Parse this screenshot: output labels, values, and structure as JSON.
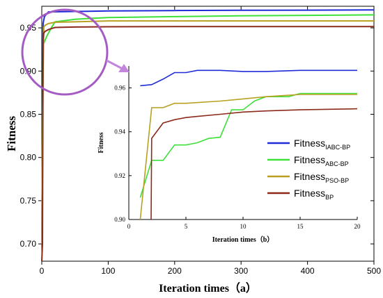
{
  "chart_data": [
    {
      "type": "line",
      "panel": "main",
      "xlabel": "Iteration times（a）",
      "ylabel": "Fitness",
      "xlim": [
        0,
        500
      ],
      "ylim": [
        0.68,
        0.975
      ],
      "xticks": [
        0,
        100,
        200,
        300,
        400,
        500
      ],
      "yticks": [
        0.7,
        0.75,
        0.8,
        0.85,
        0.9,
        0.95
      ],
      "series": [
        {
          "color": "#1f2bd8",
          "x": [
            0,
            2,
            4,
            10,
            50,
            100,
            200,
            300,
            400,
            500
          ],
          "y": [
            0.7,
            0.955,
            0.963,
            0.9685,
            0.969,
            0.9695,
            0.97,
            0.9703,
            0.9705,
            0.9708
          ]
        },
        {
          "color": "#3ee03a",
          "x": [
            0,
            2,
            4,
            8,
            15,
            20,
            50,
            100,
            200,
            300,
            400,
            500
          ],
          "y": [
            0.7,
            0.93,
            0.934,
            0.941,
            0.951,
            0.957,
            0.96,
            0.962,
            0.963,
            0.964,
            0.9645,
            0.965
          ]
        },
        {
          "color": "#b8a020",
          "x": [
            0,
            2,
            3,
            5,
            10,
            20,
            50,
            100,
            200,
            300,
            400,
            500
          ],
          "y": [
            0.7,
            0.9,
            0.951,
            0.953,
            0.955,
            0.9565,
            0.957,
            0.958,
            0.958,
            0.958,
            0.958,
            0.958
          ]
        },
        {
          "color": "#8b2a1a",
          "x": [
            0,
            1,
            2,
            3,
            5,
            10,
            20,
            50,
            100,
            200,
            300,
            400,
            500
          ],
          "y": [
            0.68,
            0.7,
            0.937,
            0.944,
            0.946,
            0.948,
            0.9505,
            0.951,
            0.9513,
            0.9515,
            0.9515,
            0.9515,
            0.9515
          ]
        }
      ]
    },
    {
      "type": "line",
      "panel": "inset",
      "xlabel": "Iteration times（b）",
      "ylabel": "Fitness",
      "xlim": [
        0,
        20
      ],
      "ylim": [
        0.9,
        0.97
      ],
      "xticks": [
        0,
        5,
        10,
        15,
        20
      ],
      "yticks": [
        0.9,
        0.92,
        0.94,
        0.96
      ],
      "grid": false,
      "legend_position": "right",
      "series": [
        {
          "name": "Fitness",
          "name_sub": "IABC-BP",
          "color": "#1f2bd8",
          "x": [
            1,
            2,
            3,
            4,
            5,
            6,
            8,
            10,
            12,
            15,
            20
          ],
          "y": [
            0.961,
            0.9615,
            0.964,
            0.967,
            0.967,
            0.968,
            0.968,
            0.9675,
            0.9675,
            0.968,
            0.968
          ]
        },
        {
          "name": "Fitness",
          "name_sub": "ABC-BP",
          "color": "#3ee03a",
          "x": [
            1,
            2,
            3,
            4,
            5,
            6,
            7,
            8,
            9,
            10,
            11,
            12,
            13,
            14,
            15,
            20
          ],
          "y": [
            0.91,
            0.927,
            0.927,
            0.934,
            0.934,
            0.935,
            0.937,
            0.9375,
            0.95,
            0.95,
            0.954,
            0.956,
            0.956,
            0.956,
            0.9575,
            0.9575
          ]
        },
        {
          "name": "Fitness",
          "name_sub": "PSO-BP",
          "color": "#b8a020",
          "x": [
            1,
            2,
            3,
            4,
            5,
            8,
            10,
            12,
            15,
            20
          ],
          "y": [
            0.9,
            0.951,
            0.951,
            0.953,
            0.953,
            0.954,
            0.955,
            0.956,
            0.957,
            0.957
          ]
        },
        {
          "name": "Fitness",
          "name_sub": "BP",
          "color": "#8b2a1a",
          "x": [
            1.95,
            2,
            3,
            4,
            5,
            6,
            8,
            10,
            12,
            15,
            20
          ],
          "y": [
            0.9,
            0.937,
            0.944,
            0.9455,
            0.9465,
            0.947,
            0.948,
            0.949,
            0.9495,
            0.95,
            0.9505
          ]
        }
      ]
    }
  ],
  "inset_label_suffix": "(b)",
  "zoom_circle_color": "#a45cc4",
  "zoom_arrow_color": "#c486dc"
}
